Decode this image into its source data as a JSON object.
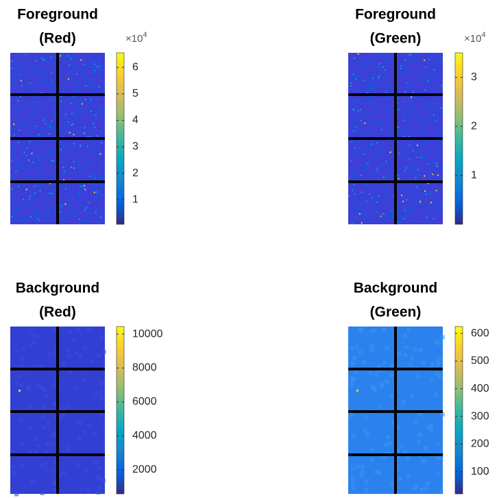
{
  "chart_data": [
    {
      "type": "image",
      "title": [
        "Foreground",
        "(Red)"
      ],
      "colormap": [
        "#352a87",
        "#0363e1",
        "#1485d4",
        "#06a7c6",
        "#38b99e",
        "#92bf73",
        "#d9ba56",
        "#fcce2e",
        "#f9fb0e"
      ],
      "clim": [
        700,
        65500
      ],
      "cticks": [
        {
          "value": 10000,
          "label": "1"
        },
        {
          "value": 20000,
          "label": "2"
        },
        {
          "value": 30000,
          "label": "3"
        },
        {
          "value": 40000,
          "label": "4"
        },
        {
          "value": 50000,
          "label": "5"
        },
        {
          "value": 60000,
          "label": "6"
        }
      ],
      "colorbar_multiplier": "×10",
      "colorbar_exponent": "4"
    },
    {
      "type": "image",
      "title": [
        "Foreground",
        "(Green)"
      ],
      "colormap": [
        "#352a87",
        "#0363e1",
        "#1485d4",
        "#06a7c6",
        "#38b99e",
        "#92bf73",
        "#d9ba56",
        "#fcce2e",
        "#f9fb0e"
      ],
      "clim": [
        0,
        35000
      ],
      "cticks": [
        {
          "value": 10000,
          "label": "1"
        },
        {
          "value": 20000,
          "label": "2"
        },
        {
          "value": 30000,
          "label": "3"
        }
      ],
      "colorbar_multiplier": "×10",
      "colorbar_exponent": "4"
    },
    {
      "type": "image",
      "title": [
        "Background",
        "(Red)"
      ],
      "colormap": [
        "#352a87",
        "#0363e1",
        "#1485d4",
        "#06a7c6",
        "#38b99e",
        "#92bf73",
        "#d9ba56",
        "#fcce2e",
        "#f9fb0e"
      ],
      "clim": [
        570,
        10450
      ],
      "cticks": [
        2000,
        4000,
        6000,
        8000,
        10000
      ]
    },
    {
      "type": "image",
      "title": [
        "Background",
        "(Green)"
      ],
      "colormap": [
        "#352a87",
        "#0363e1",
        "#1485d4",
        "#06a7c6",
        "#38b99e",
        "#92bf73",
        "#d9ba56",
        "#fcce2e",
        "#f9fb0e"
      ],
      "clim": [
        20,
        625
      ],
      "cticks": [
        100,
        200,
        300,
        400,
        500,
        600
      ]
    }
  ]
}
